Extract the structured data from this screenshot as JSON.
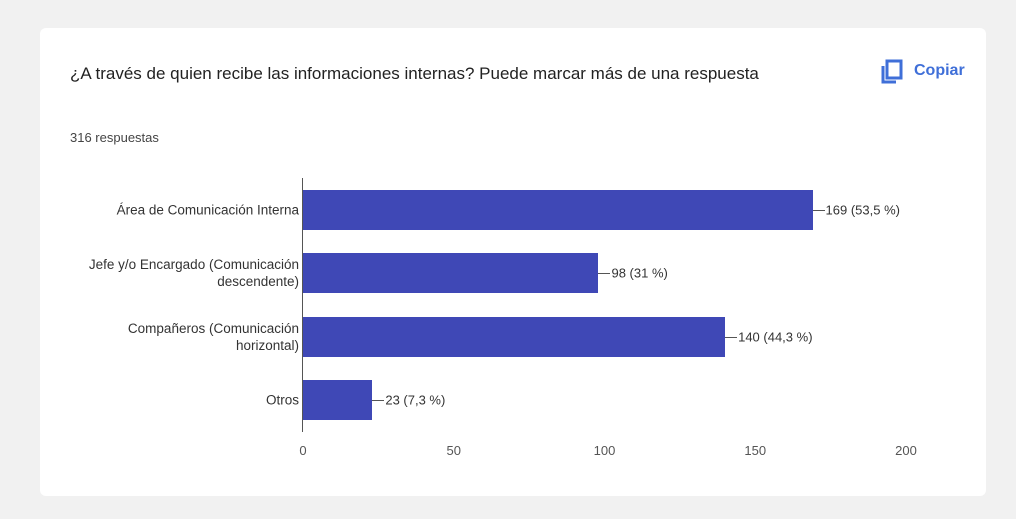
{
  "chart_data": {
    "type": "bar",
    "orientation": "horizontal",
    "title": "¿A través de quien recibe las informaciones internas? Puede marcar más de una respuesta",
    "subtitle": "316 respuestas",
    "button": "Copiar",
    "categories": [
      "Área de Comunicación Interna",
      "Jefe y/o Encargado (Comunicación descendente)",
      "Compañeros (Comunicación horizontal)",
      "Otros"
    ],
    "values": [
      169,
      98,
      140,
      23
    ],
    "value_labels": [
      "169 (53,5 %)",
      "98 (31 %)",
      "140 (44,3 %)",
      "23 (7,3 %)"
    ],
    "color": "#3f48b6",
    "xlim": [
      0,
      200
    ],
    "xticks": [
      0,
      50,
      100,
      150,
      200
    ],
    "grid": false
  }
}
